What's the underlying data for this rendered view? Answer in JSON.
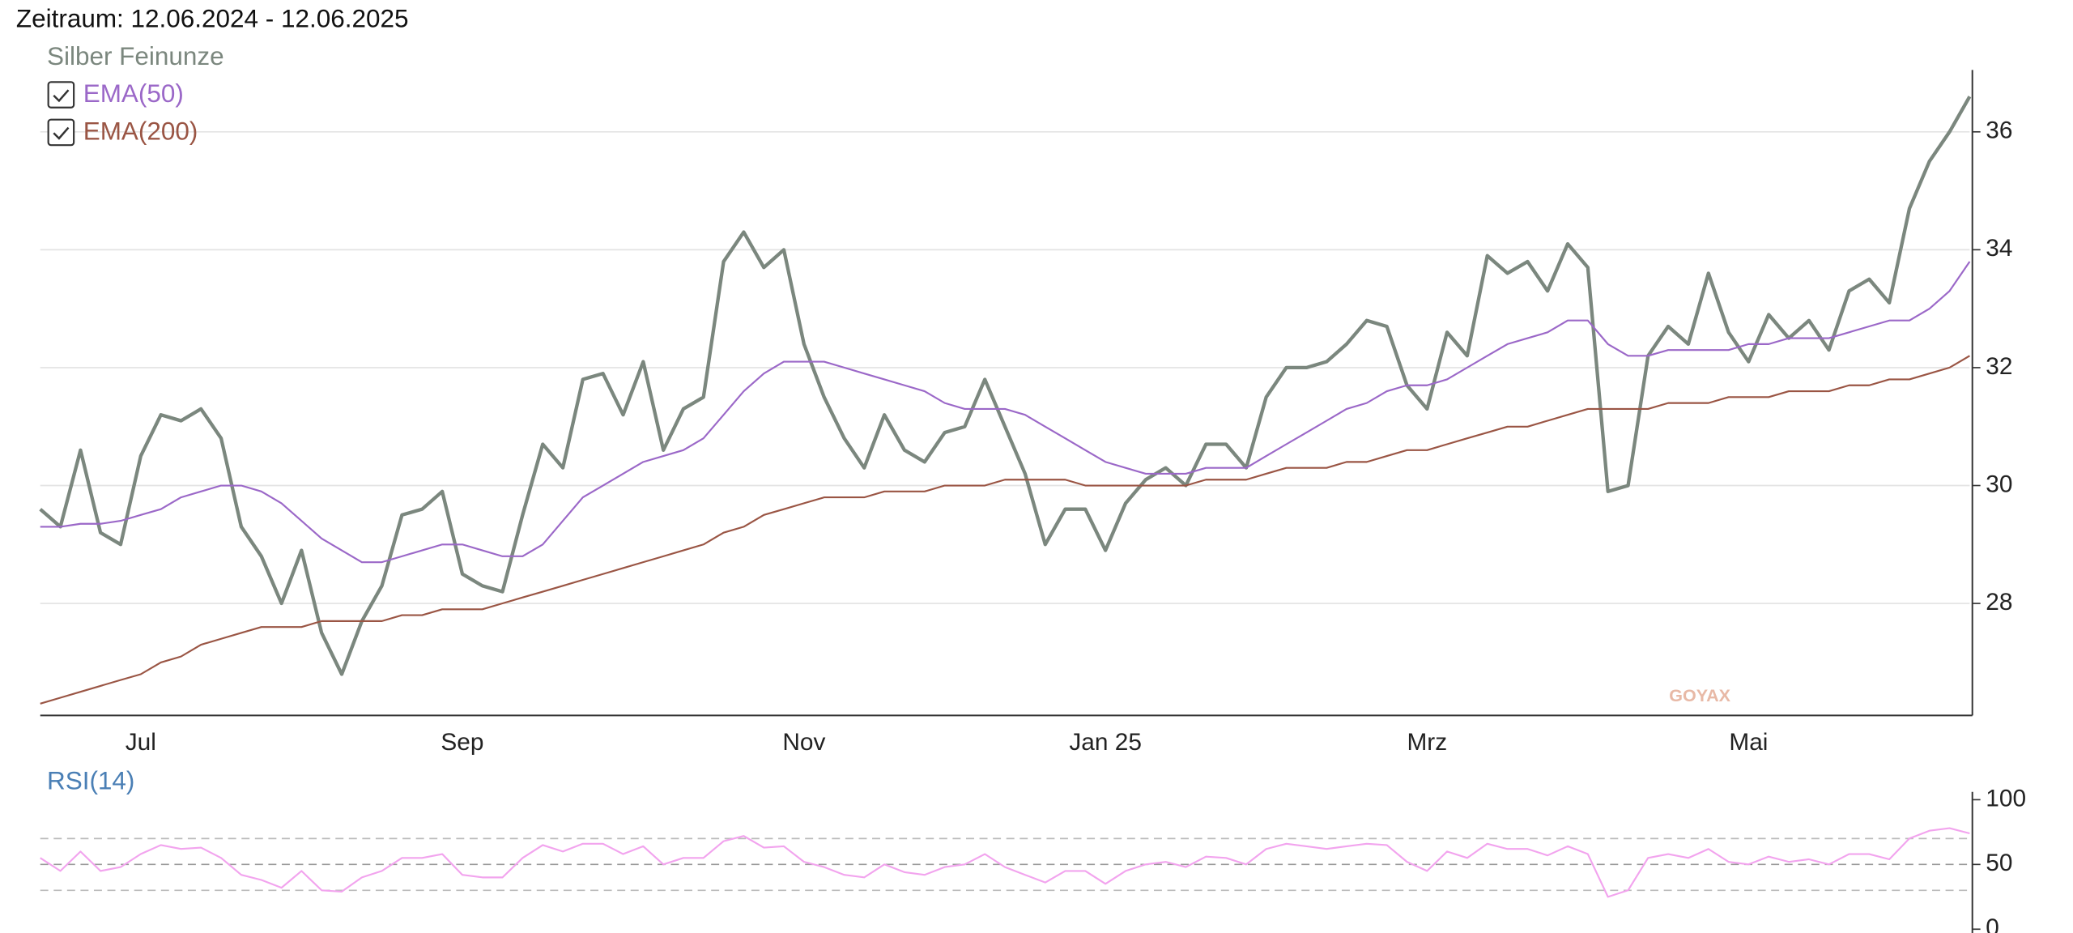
{
  "header": {
    "title": "Zeitraum: 12.06.2024 - 12.06.2025"
  },
  "watermark": "GOYAX",
  "chart_data": [
    {
      "type": "line",
      "grid": true,
      "categories": [
        null,
        null,
        null,
        null,
        null,
        "Jul",
        null,
        null,
        null,
        null,
        null,
        null,
        null,
        null,
        null,
        null,
        null,
        null,
        null,
        null,
        null,
        "Sep",
        null,
        null,
        null,
        null,
        null,
        null,
        null,
        null,
        null,
        null,
        null,
        null,
        null,
        null,
        null,
        null,
        "Nov",
        null,
        null,
        null,
        null,
        null,
        null,
        null,
        null,
        null,
        null,
        null,
        null,
        null,
        null,
        "Jan 25",
        null,
        null,
        null,
        null,
        null,
        null,
        null,
        null,
        null,
        null,
        null,
        null,
        null,
        null,
        null,
        "Mrz",
        null,
        null,
        null,
        null,
        null,
        null,
        null,
        null,
        null,
        null,
        null,
        null,
        null,
        null,
        null,
        "Mai",
        null,
        null,
        null,
        null,
        null,
        null,
        null,
        null,
        null,
        null,
        null
      ],
      "ylim": [
        26.1,
        37.05
      ],
      "yticks": [
        28,
        30,
        32,
        34,
        36
      ],
      "series": [
        {
          "name": "Silber Feinunze",
          "color": "#7b877e",
          "values": [
            29.6,
            29.3,
            30.6,
            29.2,
            29.0,
            30.5,
            31.2,
            31.1,
            31.3,
            30.8,
            29.3,
            28.8,
            28.0,
            28.9,
            27.5,
            26.8,
            27.7,
            28.3,
            29.5,
            29.6,
            29.9,
            28.5,
            28.3,
            28.2,
            29.5,
            30.7,
            30.3,
            31.8,
            31.9,
            31.2,
            32.1,
            30.6,
            31.3,
            31.5,
            33.8,
            34.3,
            33.7,
            34.0,
            32.4,
            31.5,
            30.8,
            30.3,
            31.2,
            30.6,
            30.4,
            30.9,
            31.0,
            31.8,
            31.0,
            30.2,
            29.0,
            29.6,
            29.6,
            28.9,
            29.7,
            30.1,
            30.3,
            30.0,
            30.7,
            30.7,
            30.3,
            31.5,
            32.0,
            32.0,
            32.1,
            32.4,
            32.8,
            32.7,
            31.7,
            31.3,
            32.6,
            32.2,
            33.9,
            33.6,
            33.8,
            33.3,
            34.1,
            33.7,
            29.9,
            30.0,
            32.2,
            32.7,
            32.4,
            33.6,
            32.6,
            32.1,
            32.9,
            32.5,
            32.8,
            32.3,
            33.3,
            33.5,
            33.1,
            34.7,
            35.5,
            36.0,
            36.6
          ]
        },
        {
          "name": "EMA(50)",
          "color": "#9b68c8",
          "values": [
            29.3,
            29.3,
            29.35,
            29.35,
            29.4,
            29.5,
            29.6,
            29.8,
            29.9,
            30.0,
            30.0,
            29.9,
            29.7,
            29.4,
            29.1,
            28.9,
            28.7,
            28.7,
            28.8,
            28.9,
            29.0,
            29.0,
            28.9,
            28.8,
            28.8,
            29.0,
            29.4,
            29.8,
            30.0,
            30.2,
            30.4,
            30.5,
            30.6,
            30.8,
            31.2,
            31.6,
            31.9,
            32.1,
            32.1,
            32.1,
            32.0,
            31.9,
            31.8,
            31.7,
            31.6,
            31.4,
            31.3,
            31.3,
            31.3,
            31.2,
            31.0,
            30.8,
            30.6,
            30.4,
            30.3,
            30.2,
            30.2,
            30.2,
            30.3,
            30.3,
            30.3,
            30.5,
            30.7,
            30.9,
            31.1,
            31.3,
            31.4,
            31.6,
            31.7,
            31.7,
            31.8,
            32.0,
            32.2,
            32.4,
            32.5,
            32.6,
            32.8,
            32.8,
            32.4,
            32.2,
            32.2,
            32.3,
            32.3,
            32.3,
            32.3,
            32.4,
            32.4,
            32.5,
            32.5,
            32.5,
            32.6,
            32.7,
            32.8,
            32.8,
            33.0,
            33.3,
            33.8
          ]
        },
        {
          "name": "EMA(200)",
          "color": "#9a5544",
          "values": [
            26.3,
            26.4,
            26.5,
            26.6,
            26.7,
            26.8,
            27.0,
            27.1,
            27.3,
            27.4,
            27.5,
            27.6,
            27.6,
            27.6,
            27.7,
            27.7,
            27.7,
            27.7,
            27.8,
            27.8,
            27.9,
            27.9,
            27.9,
            28.0,
            28.1,
            28.2,
            28.3,
            28.4,
            28.5,
            28.6,
            28.7,
            28.8,
            28.9,
            29.0,
            29.2,
            29.3,
            29.5,
            29.6,
            29.7,
            29.8,
            29.8,
            29.8,
            29.9,
            29.9,
            29.9,
            30.0,
            30.0,
            30.0,
            30.1,
            30.1,
            30.1,
            30.1,
            30.0,
            30.0,
            30.0,
            30.0,
            30.0,
            30.0,
            30.1,
            30.1,
            30.1,
            30.2,
            30.3,
            30.3,
            30.3,
            30.4,
            30.4,
            30.5,
            30.6,
            30.6,
            30.7,
            30.8,
            30.9,
            31.0,
            31.0,
            31.1,
            31.2,
            31.3,
            31.3,
            31.3,
            31.3,
            31.4,
            31.4,
            31.4,
            31.5,
            31.5,
            31.5,
            31.6,
            31.6,
            31.6,
            31.7,
            31.7,
            31.8,
            31.8,
            31.9,
            32.0,
            32.2
          ]
        }
      ]
    },
    {
      "type": "line",
      "ylim": [
        -8,
        106
      ],
      "yticks": [
        0,
        50,
        100
      ],
      "levels": [
        30,
        50,
        70
      ],
      "series": [
        {
          "name": "RSI(14)",
          "color": "#f2a4ee",
          "values": [
            55,
            45,
            60,
            45,
            48,
            58,
            65,
            62,
            63,
            55,
            42,
            38,
            32,
            45,
            30,
            29,
            40,
            45,
            55,
            55,
            58,
            42,
            40,
            40,
            55,
            65,
            60,
            66,
            66,
            58,
            64,
            50,
            55,
            55,
            68,
            72,
            63,
            64,
            52,
            48,
            42,
            40,
            50,
            44,
            42,
            48,
            50,
            58,
            48,
            42,
            36,
            45,
            45,
            35,
            45,
            50,
            52,
            48,
            56,
            55,
            50,
            62,
            66,
            64,
            62,
            64,
            66,
            65,
            52,
            45,
            60,
            55,
            66,
            62,
            62,
            57,
            64,
            58,
            25,
            30,
            55,
            58,
            55,
            62,
            52,
            50,
            56,
            52,
            54,
            50,
            58,
            58,
            54,
            70,
            76,
            78,
            74
          ]
        }
      ]
    }
  ]
}
